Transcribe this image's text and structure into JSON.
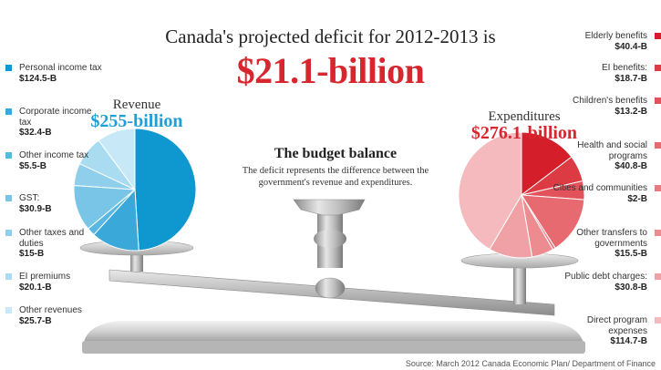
{
  "header": {
    "title": "Canada's projected deficit for 2012-2013 is",
    "amount": "$21.1-billion"
  },
  "balance": {
    "title": "The budget balance",
    "description": "The deficit represents the difference between the government's revenue and expenditures."
  },
  "source": "Source: March 2012 Canada Economic Plan/ Department of Finance",
  "colors": {
    "revenue_accent": "#1e9fd6",
    "expenditure_accent": "#d7262e"
  },
  "chart_data": [
    {
      "type": "pie",
      "title": "Revenue",
      "total": "$255-billion",
      "legend_placement": "left",
      "categories": [
        "Personal income tax",
        "Corporate income tax",
        "Other income tax",
        "GST:",
        "Other taxes and duties",
        "EI premiums",
        "Other revenues"
      ],
      "labels": [
        "$124.5-B",
        "$32.4-B",
        "$5.5-B",
        "$30.9-B",
        "$15-B",
        "$20.1-B",
        "$25.7-B"
      ],
      "values": [
        124.5,
        32.4,
        5.5,
        30.9,
        15,
        20.1,
        25.7
      ],
      "colors": [
        "#0f97d0",
        "#3aa9da",
        "#59b7e0",
        "#78c5e7",
        "#8fcfeb",
        "#a9dcf1",
        "#c7e8f6"
      ]
    },
    {
      "type": "pie",
      "title": "Expenditures",
      "total": "$276.1-billion",
      "legend_placement": "right",
      "categories": [
        "Elderly benefits",
        "EI benefits:",
        "Children's benefits",
        "Health and social programs",
        "Cities and communities",
        "Other transfers to governments",
        "Public debt charges:",
        "Direct program expenses"
      ],
      "labels": [
        "$40.4-B",
        "$18.7-B",
        "$13.2-B",
        "$40.8-B",
        "$2-B",
        "$15.5-B",
        "$30.8-B",
        "$114.7-B"
      ],
      "values": [
        40.4,
        18.7,
        13.2,
        40.8,
        2,
        15.5,
        30.8,
        114.7
      ],
      "colors": [
        "#d41f2b",
        "#dc3b44",
        "#e2525a",
        "#e66a70",
        "#e97a80",
        "#ec8b90",
        "#f0a1a5",
        "#f4babd"
      ]
    }
  ]
}
